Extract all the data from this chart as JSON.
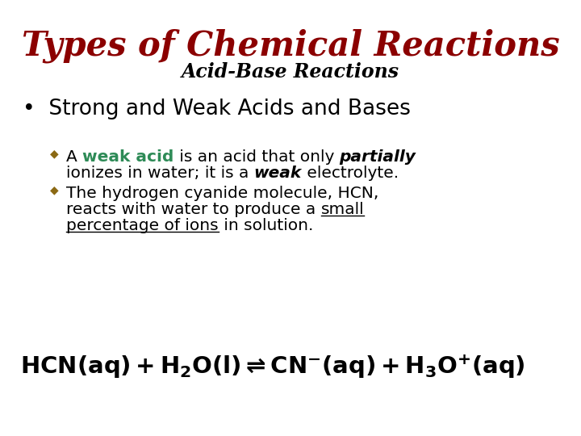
{
  "title": "Types of Chemical Reactions",
  "title_color": "#8B0000",
  "subtitle": "Acid-Base Reactions",
  "subtitle_color": "#000000",
  "bullet1": "Strong and Weak Acids and Bases",
  "bullet_color": "#000000",
  "sub_bullet_marker_color": "#8B6914",
  "weak_acid_color": "#2E8B57",
  "background_color": "#FFFFFF",
  "text_color": "#000000",
  "equation_color": "#000000",
  "fig_width": 7.2,
  "fig_height": 5.4,
  "dpi": 100
}
